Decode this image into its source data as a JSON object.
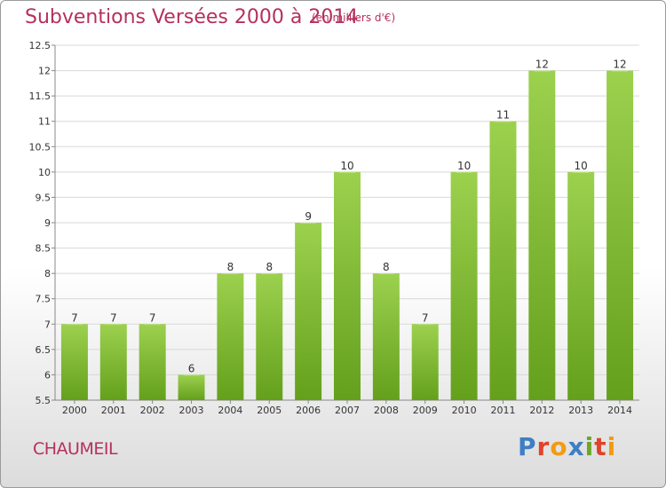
{
  "title": "Subventions Versées 2000 à 2014",
  "unit_note": "(en milliers d'€)",
  "commune": "CHAUMEIL",
  "logo": {
    "letters": [
      "P",
      "r",
      "o",
      "x",
      "i",
      "t",
      "i"
    ],
    "colors": [
      "#3d7fc4",
      "#e0432a",
      "#f29b12",
      "#3d7fc4",
      "#6aa82a",
      "#e0432a",
      "#f29b12"
    ]
  },
  "colors": {
    "title": "#b5305e",
    "bar_light": "#9cd14e",
    "bar_dark": "#64a01c",
    "grid": "#d8d8d8"
  },
  "chart_data": {
    "type": "bar",
    "title": "Subventions Versées 2000 à 2014",
    "subtitle": "(en milliers d'€)",
    "categories": [
      "2000",
      "2001",
      "2002",
      "2003",
      "2004",
      "2005",
      "2006",
      "2007",
      "2008",
      "2009",
      "2010",
      "2011",
      "2012",
      "2013",
      "2014"
    ],
    "values": [
      7,
      7,
      7,
      6,
      8,
      8,
      9,
      10,
      8,
      7,
      10,
      11,
      12,
      10,
      12
    ],
    "data_labels": [
      "7",
      "7",
      "7",
      "6",
      "8",
      "8",
      "9",
      "10",
      "8",
      "7",
      "10",
      "11",
      "12",
      "10",
      "12"
    ],
    "ylim": [
      5.5,
      12.5
    ],
    "yticks": [
      "5.5",
      "6",
      "6.5",
      "7",
      "7.5",
      "8",
      "8.5",
      "9",
      "9.5",
      "10",
      "10.5",
      "11",
      "11.5",
      "12",
      "12.5"
    ],
    "grid": true,
    "legend": "none"
  }
}
